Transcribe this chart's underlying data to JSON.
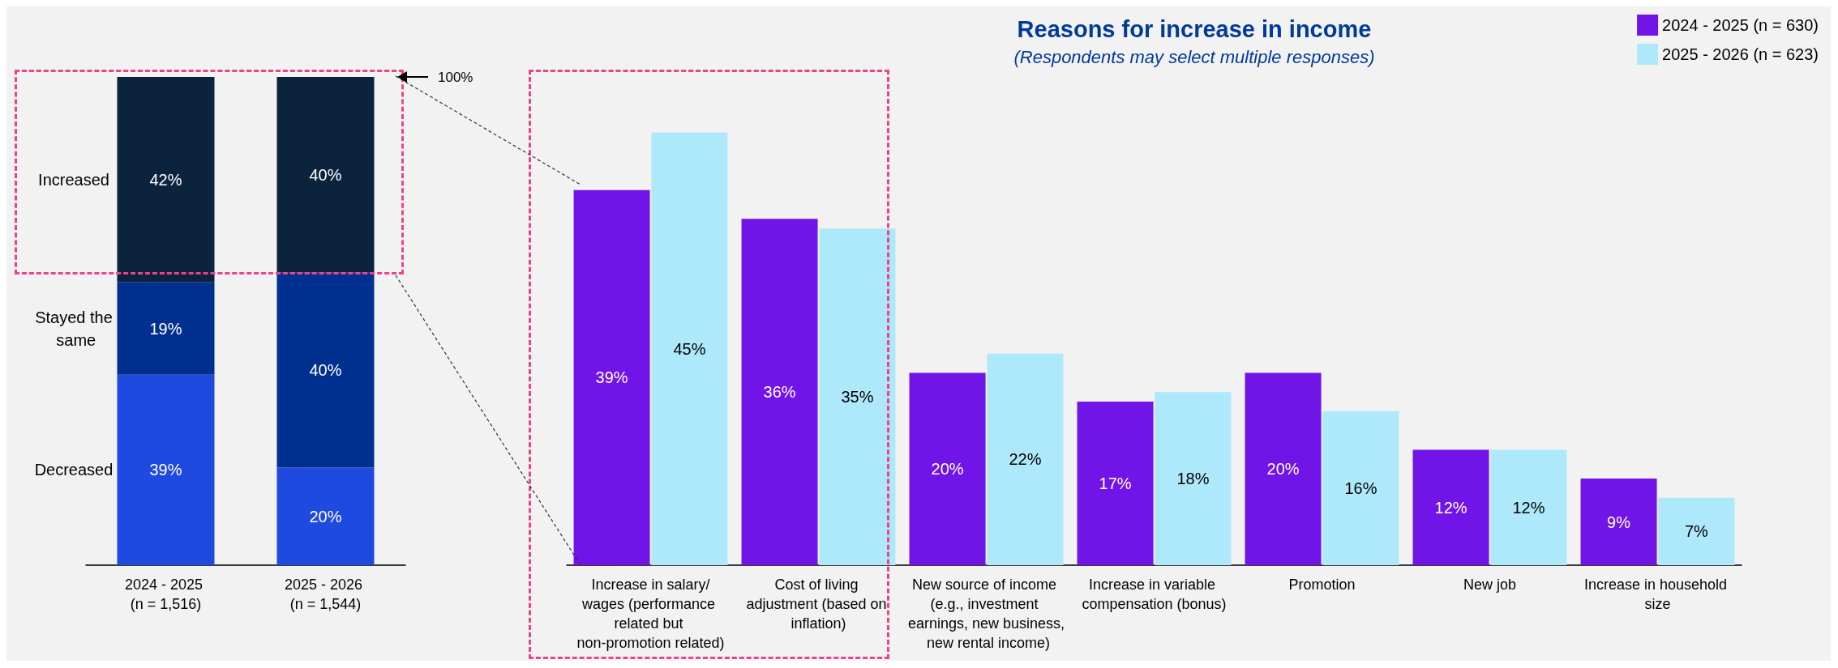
{
  "chart_data": [
    {
      "type": "bar",
      "stacked": true,
      "legend": false,
      "grid": false,
      "tick_labels": "x",
      "categories": [
        "2024 - 2025 (n = 1,516)",
        "2025 - 2026 (n = 1,544)"
      ],
      "series": [
        {
          "name": "Decreased",
          "color": "#1f4ae0",
          "values": [
            39,
            20
          ],
          "value_labels": [
            "39%",
            "20%"
          ]
        },
        {
          "name": "Stayed the same",
          "color": "#00308f",
          "values": [
            19,
            40
          ],
          "value_labels": [
            "19%",
            "40%"
          ]
        },
        {
          "name": "Increased",
          "color": "#0c233d",
          "values": [
            42,
            40
          ],
          "value_labels": [
            "42%",
            "40%"
          ]
        }
      ],
      "annotations": [
        "100%"
      ]
    },
    {
      "type": "bar",
      "title": "Reasons for increase in income",
      "subtitle": "(Respondents may select multiple responses)",
      "legend": "top right",
      "grid": false,
      "tick_labels": "x",
      "categories": [
        "Increase in salary/wages (performance related but non-promotion related)",
        "Cost of living adjustment (based on inflation)",
        "New source of income (e.g., investment earnings, new business, new rental income)",
        "Increase in variable compensation (bonus)",
        "Promotion",
        "New job",
        "Increase in household size"
      ],
      "series": [
        {
          "name": "2024 - 2025 (n = 630)",
          "color": "#7014e8",
          "values": [
            39,
            36,
            20,
            17,
            20,
            12,
            9
          ],
          "value_labels": [
            "39%",
            "36%",
            "20%",
            "17%",
            "20%",
            "12%",
            "9%"
          ]
        },
        {
          "name": "2025 - 2026 (n = 623)",
          "color": "#aee8fb",
          "values": [
            45,
            35,
            22,
            18,
            16,
            12,
            7
          ],
          "value_labels": [
            "45%",
            "35%",
            "22%",
            "18%",
            "16%",
            "12%",
            "7%"
          ]
        }
      ]
    }
  ]
}
